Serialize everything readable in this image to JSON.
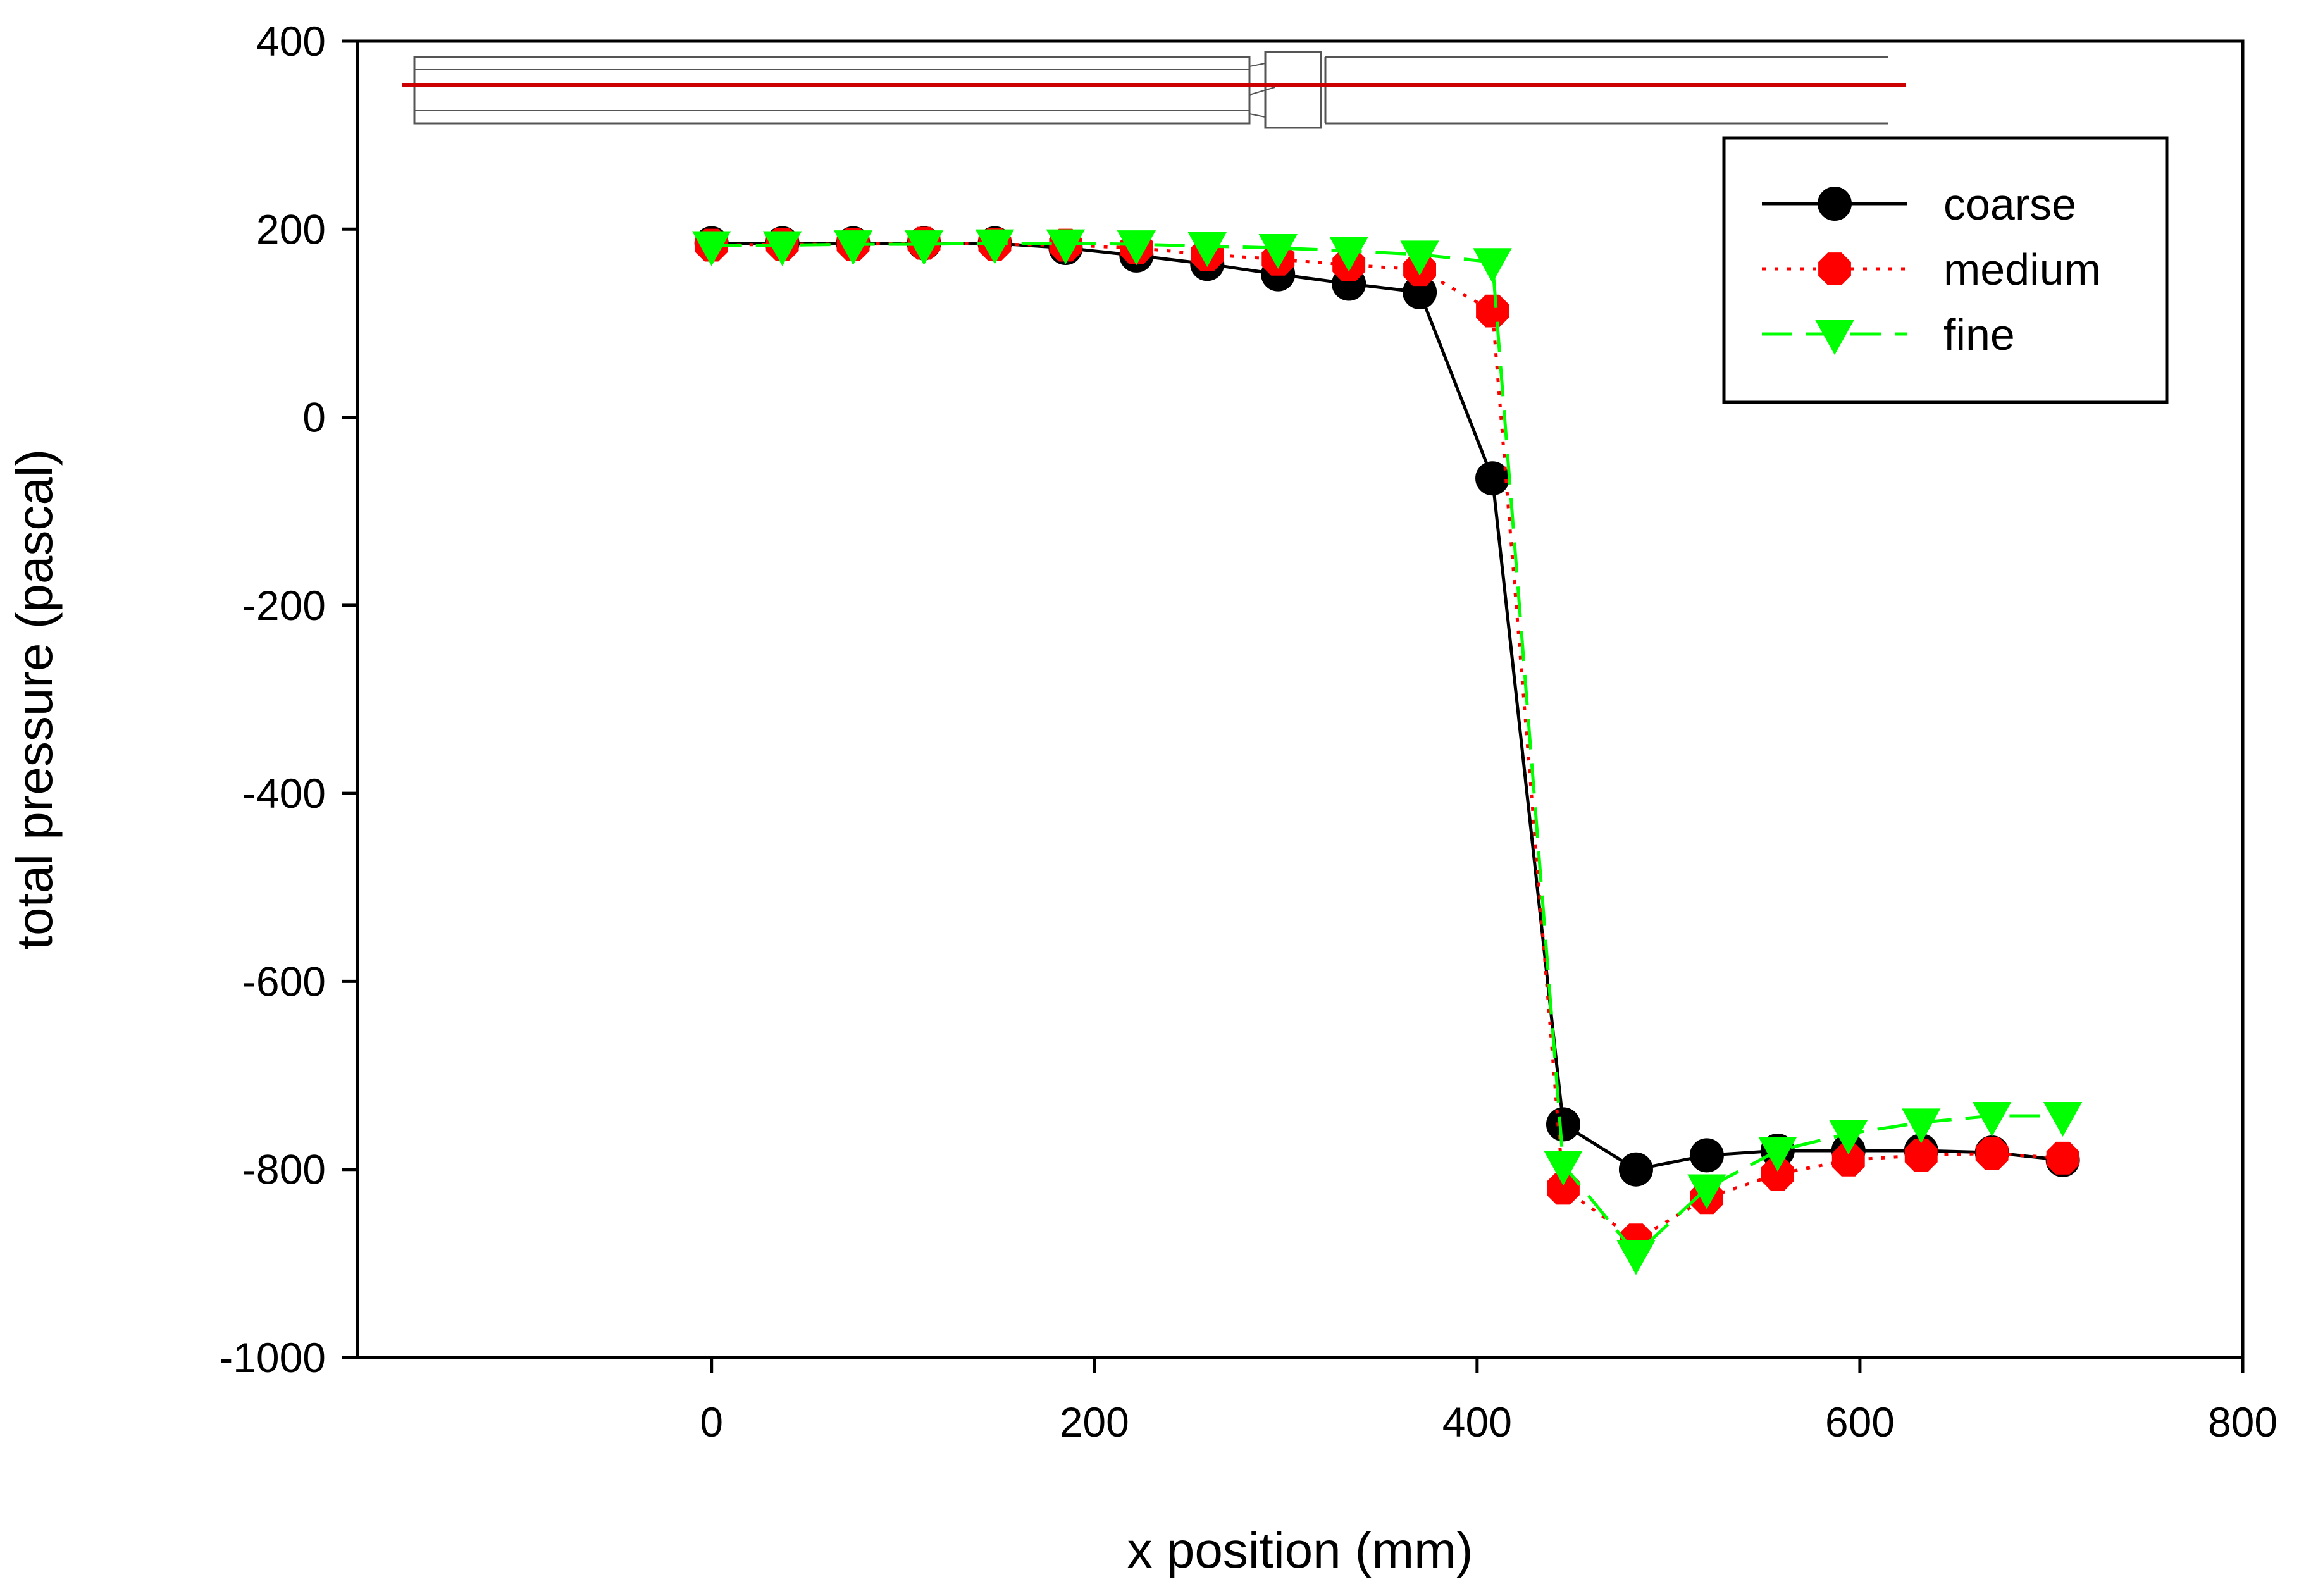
{
  "chart_data": {
    "type": "line",
    "title": "",
    "xlabel": "x position (mm)",
    "ylabel": "total pressure (pascal)",
    "xlim": [
      -185,
      800
    ],
    "ylim": [
      -1000,
      400
    ],
    "xticks": [
      0,
      200,
      400,
      600,
      800
    ],
    "yticks": [
      -1000,
      -800,
      -600,
      -400,
      -200,
      0,
      200,
      400
    ],
    "xtick_labels": [
      "0",
      "200",
      "400",
      "600",
      "800"
    ],
    "ytick_labels": [
      "-1000",
      "-800",
      "-600",
      "-400",
      "-200",
      "0",
      "200",
      "400"
    ],
    "grid": false,
    "legend_position": "top-right",
    "series": [
      {
        "name": "coarse",
        "color": "#000000",
        "line_style": "solid",
        "marker": "circle",
        "x": [
          0,
          37,
          74,
          111,
          148,
          185,
          222,
          259,
          296,
          333,
          370,
          408,
          445,
          483,
          520,
          557,
          594,
          632,
          669,
          706
        ],
        "values": [
          185,
          185,
          185,
          185,
          185,
          180,
          172,
          163,
          152,
          142,
          133,
          -65,
          -752,
          -800,
          -785,
          -780,
          -780,
          -780,
          -782,
          -790
        ]
      },
      {
        "name": "medium",
        "color": "#ff0000",
        "line_style": "dotted",
        "marker": "octagon",
        "x": [
          0,
          37,
          74,
          111,
          148,
          185,
          222,
          259,
          296,
          333,
          370,
          408,
          445,
          483,
          520,
          557,
          594,
          632,
          669,
          706
        ],
        "values": [
          183,
          184,
          184,
          185,
          184,
          183,
          180,
          173,
          168,
          162,
          157,
          113,
          -820,
          -875,
          -830,
          -805,
          -790,
          -785,
          -783,
          -788
        ]
      },
      {
        "name": "fine",
        "color": "#00ff00",
        "line_style": "dashed",
        "marker": "triangle-down",
        "x": [
          0,
          37,
          74,
          111,
          148,
          185,
          222,
          259,
          296,
          333,
          370,
          408,
          445,
          483,
          520,
          557,
          594,
          632,
          669,
          706
        ],
        "values": [
          183,
          183,
          184,
          184,
          185,
          185,
          184,
          182,
          180,
          177,
          173,
          165,
          -795,
          -890,
          -820,
          -780,
          -762,
          -750,
          -743,
          -743
        ]
      }
    ],
    "inset": {
      "description": "pipe schematic with red sampling line",
      "line_color": "#cc0000",
      "pipe_color": "#555555"
    }
  }
}
